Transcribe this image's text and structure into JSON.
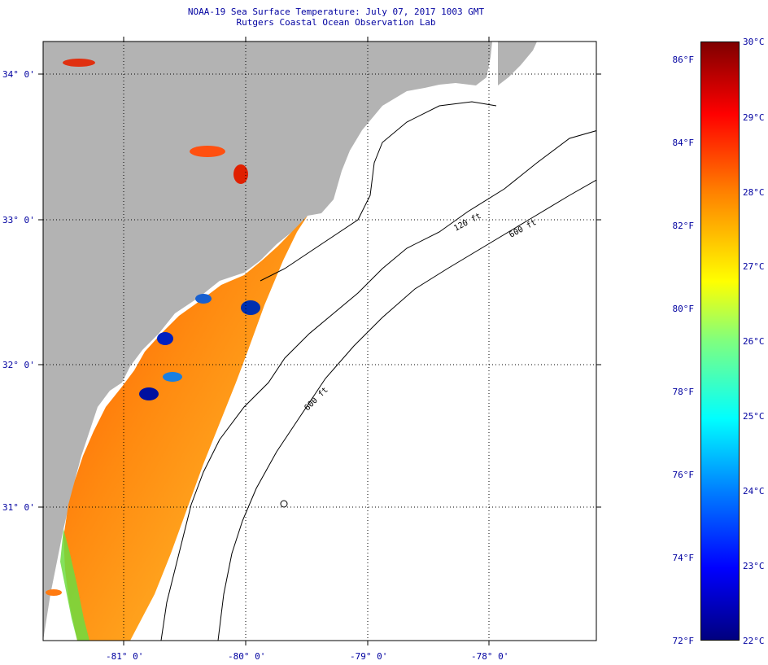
{
  "title": {
    "line1": "NOAA-19 Sea Surface Temperature:  July 07, 2017 1003 GMT",
    "line2": "Rutgers Coastal Ocean Observation Lab"
  },
  "map": {
    "lat_labels": [
      "34° 0'",
      "33° 0'",
      "32° 0'",
      "31° 0'"
    ],
    "lon_labels": [
      "-81° 0'",
      "-80° 0'",
      "-79° 0'",
      "-78° 0'"
    ],
    "contour_labels": [
      "120 ft",
      "600 ft",
      "600 ft"
    ],
    "colors": {
      "land": "#b3b3b3",
      "ocean": "#ffffff",
      "graticule": "#000000"
    }
  },
  "colorbar": {
    "fahrenheit": [
      "86°F",
      "84°F",
      "82°F",
      "80°F",
      "78°F",
      "76°F",
      "74°F",
      "72°F"
    ],
    "celsius": [
      "30°C",
      "29°C",
      "28°C",
      "27°C",
      "26°C",
      "25°C",
      "24°C",
      "23°C",
      "22°C"
    ],
    "range_c": [
      22,
      30
    ],
    "range_f": [
      72,
      86
    ],
    "colormap": "jet"
  }
}
